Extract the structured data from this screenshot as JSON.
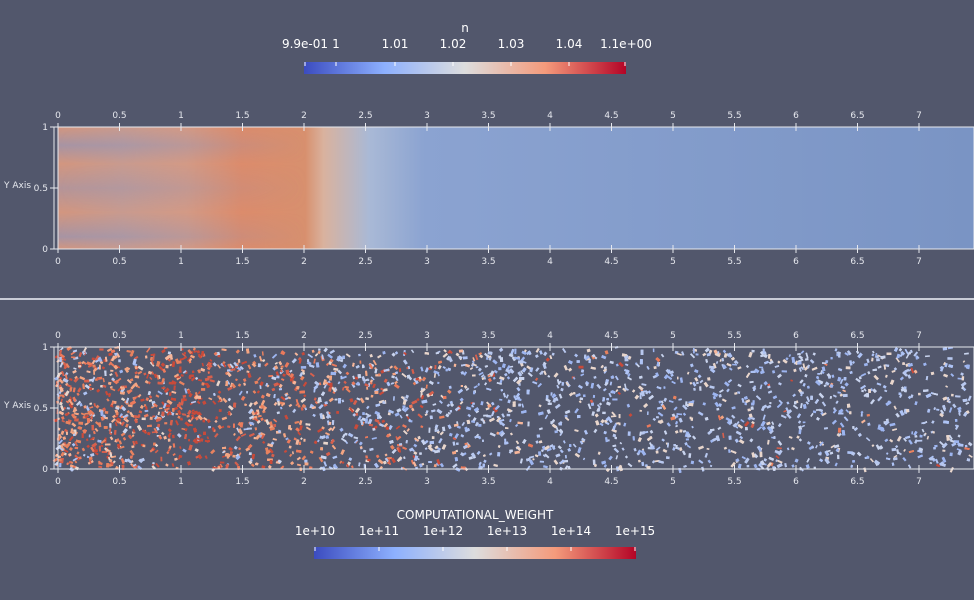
{
  "colorbar_top": {
    "title": "n",
    "ticks": [
      "9.9e-01",
      "1",
      "1.01",
      "1.02",
      "1.03",
      "1.04",
      "1.1e+00"
    ]
  },
  "colorbar_bottom": {
    "title": "COMPUTATIONAL_WEIGHT",
    "ticks": [
      "1e+10",
      "1e+11",
      "1e+12",
      "1e+13",
      "1e+14",
      "1e+15"
    ]
  },
  "colormap": [
    "#3b4cc0",
    "#8db0fe",
    "#dddddd",
    "#f49a7b",
    "#b40426"
  ],
  "plot_top": {
    "y_axis_label": "Y Axis",
    "x_ticks": [
      "0",
      "0.5",
      "1",
      "1.5",
      "2",
      "2.5",
      "3",
      "3.5",
      "4",
      "4.5",
      "5",
      "5.5",
      "6",
      "6.5",
      "7"
    ],
    "y_ticks": [
      "0",
      "0.5",
      "1"
    ]
  },
  "plot_bottom": {
    "y_axis_label": "Y Axis",
    "x_ticks": [
      "0",
      "0.5",
      "1",
      "1.5",
      "2",
      "2.5",
      "3",
      "3.5",
      "4",
      "4.5",
      "5",
      "5.5",
      "6",
      "6.5",
      "7"
    ],
    "y_ticks": [
      "0",
      "0.5",
      "1"
    ]
  }
}
